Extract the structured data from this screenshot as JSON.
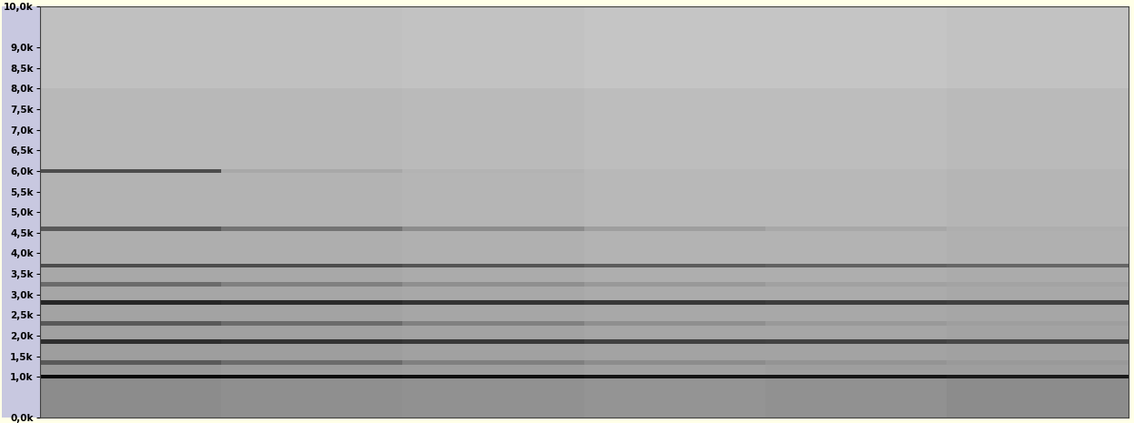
{
  "chart_data": {
    "type": "heatmap",
    "tick_labels": "y",
    "ylim": [
      0,
      10000
    ],
    "yticks": [
      {
        "value": 0,
        "label": "0,0k"
      },
      {
        "value": 1000,
        "label": "1,0k"
      },
      {
        "value": 1500,
        "label": "1,5k"
      },
      {
        "value": 2000,
        "label": "2,0k"
      },
      {
        "value": 2500,
        "label": "2,5k"
      },
      {
        "value": 3000,
        "label": "3,0k"
      },
      {
        "value": 3500,
        "label": "3,5k"
      },
      {
        "value": 4000,
        "label": "4,0k"
      },
      {
        "value": 4500,
        "label": "4,5k"
      },
      {
        "value": 5000,
        "label": "5,0k"
      },
      {
        "value": 5500,
        "label": "5,5k"
      },
      {
        "value": 6000,
        "label": "6,0k"
      },
      {
        "value": 6500,
        "label": "6,5k"
      },
      {
        "value": 7000,
        "label": "7,0k"
      },
      {
        "value": 7500,
        "label": "7,5k"
      },
      {
        "value": 8000,
        "label": "8,0k"
      },
      {
        "value": 8500,
        "label": "8,5k"
      },
      {
        "value": 9000,
        "label": "9,0k"
      },
      {
        "value": 10000,
        "label": "10,0k"
      }
    ],
    "y_edges": [
      0,
      950,
      1050,
      1300,
      1400,
      1800,
      1900,
      2250,
      2350,
      2750,
      2850,
      3200,
      3300,
      3650,
      3750,
      4550,
      4650,
      5950,
      6050,
      8000,
      10000
    ],
    "zlim": [
      0,
      1
    ],
    "cells": [
      [
        0.55,
        0.56,
        0.57,
        0.58,
        0.57,
        0.55
      ],
      [
        0.03,
        0.04,
        0.06,
        0.08,
        0.08,
        0.1
      ],
      [
        0.6,
        0.61,
        0.62,
        0.63,
        0.62,
        0.62
      ],
      [
        0.35,
        0.42,
        0.5,
        0.55,
        0.58,
        0.6
      ],
      [
        0.62,
        0.62,
        0.63,
        0.64,
        0.64,
        0.63
      ],
      [
        0.18,
        0.2,
        0.22,
        0.25,
        0.26,
        0.28
      ],
      [
        0.63,
        0.63,
        0.64,
        0.65,
        0.65,
        0.64
      ],
      [
        0.35,
        0.42,
        0.5,
        0.56,
        0.6,
        0.62
      ],
      [
        0.64,
        0.64,
        0.65,
        0.66,
        0.66,
        0.65
      ],
      [
        0.15,
        0.17,
        0.2,
        0.22,
        0.24,
        0.25
      ],
      [
        0.65,
        0.65,
        0.66,
        0.67,
        0.67,
        0.66
      ],
      [
        0.42,
        0.5,
        0.56,
        0.6,
        0.63,
        0.64
      ],
      [
        0.66,
        0.66,
        0.67,
        0.68,
        0.68,
        0.67
      ],
      [
        0.3,
        0.3,
        0.33,
        0.36,
        0.38,
        0.4
      ],
      [
        0.68,
        0.68,
        0.69,
        0.7,
        0.7,
        0.69
      ],
      [
        0.35,
        0.45,
        0.55,
        0.62,
        0.66,
        0.68
      ],
      [
        0.7,
        0.7,
        0.71,
        0.72,
        0.72,
        0.71
      ],
      [
        0.3,
        0.66,
        0.7,
        0.72,
        0.72,
        0.71
      ],
      [
        0.72,
        0.72,
        0.73,
        0.74,
        0.74,
        0.73
      ],
      [
        0.75,
        0.75,
        0.76,
        0.77,
        0.77,
        0.76
      ]
    ]
  }
}
